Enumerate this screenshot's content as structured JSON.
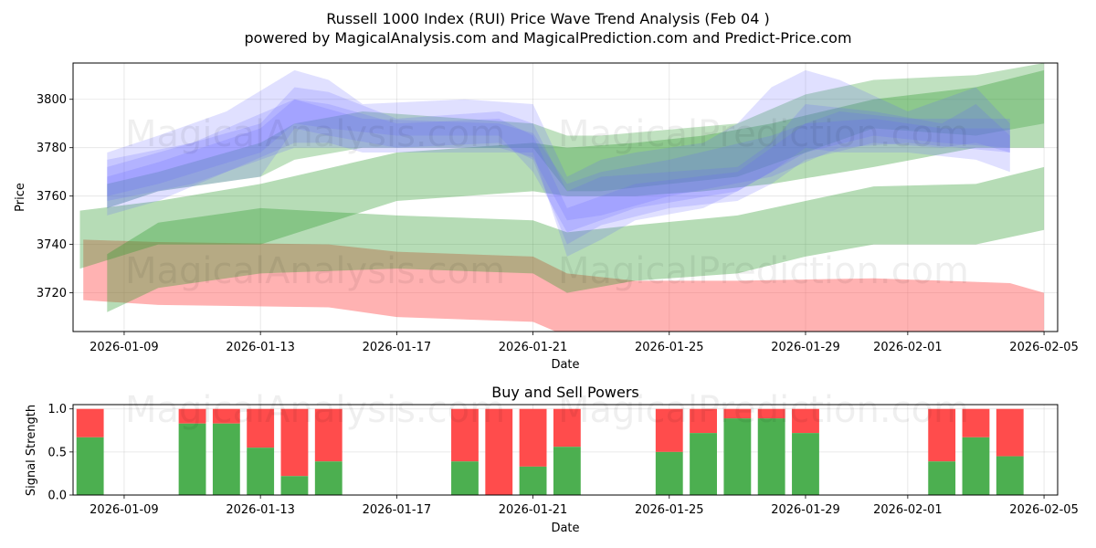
{
  "title_line1": "Russell 1000 Index (RUI) Price Wave Trend Analysis (Feb 04 )",
  "title_line2": "powered by MagicalAnalysis.com and MagicalPrediction.com and Predict-Price.com",
  "watermarks": [
    "MagicalAnalysis.com",
    "MagicalPrediction.com"
  ],
  "chart_data": [
    {
      "type": "area",
      "title": "",
      "xlabel": "Date",
      "ylabel": "Price",
      "x_ticks": [
        "2026-01-09",
        "2026-01-13",
        "2026-01-17",
        "2026-01-21",
        "2026-01-25",
        "2026-01-29",
        "2026-02-01",
        "2026-02-05"
      ],
      "y_ticks": [
        3720,
        3740,
        3760,
        3780,
        3800
      ],
      "xlim": [
        "2026-01-06.5",
        "2026-02-05.4"
      ],
      "ylim": [
        3704,
        3815
      ],
      "grid": true,
      "colors": {
        "blue": "#6666ff",
        "green": "#2e9a2e",
        "red": "#ff5555"
      },
      "bands": {
        "blue": [
          {
            "x": [
              7.5,
              9,
              12,
              13,
              14,
              16,
              19,
              20,
              21,
              22,
              24,
              26,
              27,
              28,
              30,
              32,
              33,
              34
            ],
            "lo": [
              3755,
              3762,
              3768,
              3788,
              3785,
              3780,
              3782,
              3775,
              3740,
              3748,
              3755,
              3758,
              3765,
              3775,
              3782,
              3780,
              3782,
              3778
            ],
            "hi": [
              3772,
              3778,
              3790,
              3805,
              3803,
              3792,
              3795,
              3790,
              3762,
              3768,
              3770,
              3772,
              3782,
              3798,
              3795,
              3790,
              3798,
              3785
            ]
          },
          {
            "x": [
              7.5,
              9,
              11,
              13,
              14,
              15,
              18,
              20,
              21,
              22,
              23,
              25,
              26,
              27,
              28,
              29,
              31,
              33,
              34
            ],
            "lo": [
              3752,
              3758,
              3770,
              3782,
              3782,
              3778,
              3778,
              3778,
              3735,
              3742,
              3750,
              3755,
              3762,
              3770,
              3780,
              3778,
              3778,
              3775,
              3770
            ],
            "hi": [
              3778,
              3785,
              3795,
              3812,
              3808,
              3798,
              3800,
              3798,
              3768,
              3775,
              3778,
              3782,
              3790,
              3805,
              3812,
              3808,
              3795,
              3805,
              3790
            ]
          },
          {
            "x": [
              7.5,
              9,
              12,
              13,
              14,
              16,
              19,
              20,
              21,
              23,
              26,
              28,
              30,
              32,
              34
            ],
            "lo": [
              3760,
              3765,
              3778,
              3790,
              3788,
              3785,
              3785,
              3770,
              3745,
              3755,
              3762,
              3778,
              3785,
              3782,
              3780
            ],
            "hi": [
              3768,
              3774,
              3788,
              3800,
              3798,
              3790,
              3792,
              3785,
              3755,
              3765,
              3770,
              3790,
              3792,
              3788,
              3788
            ]
          },
          {
            "x": [
              7.5,
              10,
              13,
              15,
              19,
              20,
              21,
              22,
              24,
              27,
              29,
              31,
              34
            ],
            "lo": [
              3758,
              3765,
              3780,
              3780,
              3780,
              3776,
              3750,
              3752,
              3760,
              3768,
              3780,
              3782,
              3778
            ],
            "hi": [
              3775,
              3782,
              3800,
              3792,
              3790,
              3786,
              3765,
              3770,
              3775,
              3785,
              3795,
              3792,
              3792
            ]
          }
        ],
        "green": [
          {
            "x": [
              7.5,
              9,
              12,
              13,
              15,
              20,
              21,
              22,
              26,
              28,
              30,
              33,
              35
            ],
            "lo": [
              3755,
              3762,
              3768,
              3775,
              3780,
              3780,
              3762,
              3762,
              3768,
              3778,
              3788,
              3785,
              3790
            ],
            "hi": [
              3765,
              3770,
              3782,
              3790,
              3795,
              3790,
              3785,
              3785,
              3790,
              3802,
              3808,
              3810,
              3815
            ]
          },
          {
            "x": [
              6.7,
              9,
              12,
              16,
              20,
              21,
              23,
              25,
              27,
              30,
              33,
              35
            ],
            "lo": [
              3730,
              3740,
              3740,
              3758,
              3762,
              3760,
              3760,
              3762,
              3765,
              3772,
              3780,
              3780
            ],
            "hi": [
              3754,
              3758,
              3765,
              3778,
              3782,
              3780,
              3782,
              3785,
              3790,
              3800,
              3805,
              3812
            ]
          },
          {
            "x": [
              7.5,
              9,
              12,
              16,
              20,
              21,
              23,
              26,
              28,
              30,
              33,
              35
            ],
            "lo": [
              3712,
              3722,
              3728,
              3730,
              3728,
              3720,
              3725,
              3728,
              3735,
              3740,
              3740,
              3746
            ]
          },
          {
            "x": [
              6.7,
              9,
              12,
              16,
              20,
              21,
              23,
              26,
              28,
              30,
              33,
              35
            ],
            "hi": [
              3736,
              3749,
              3755,
              3752,
              3750,
              3745,
              3748,
              3752,
              3758,
              3764,
              3765,
              3772
            ]
          }
        ],
        "red": [
          {
            "x": [
              6.8,
              9,
              14,
              16,
              20,
              21,
              23,
              26,
              30,
              34,
              35
            ],
            "lo": [
              3717,
              3715,
              3714,
              3710,
              3708,
              3702,
              3702,
              3702,
              3702,
              3702,
              3700
            ],
            "hi": [
              3742,
              3741,
              3740,
              3737,
              3735,
              3728,
              3725,
              3725,
              3726,
              3724,
              3720
            ]
          }
        ]
      }
    },
    {
      "type": "bar",
      "title": "Buy and Sell Powers",
      "xlabel": "Date",
      "ylabel": "Signal Strength",
      "x_ticks": [
        "2026-01-09",
        "2026-01-13",
        "2026-01-17",
        "2026-01-21",
        "2026-01-25",
        "2026-01-29",
        "2026-02-01",
        "2026-02-05"
      ],
      "y_ticks": [
        "0.0",
        "0.5",
        "1.0"
      ],
      "ylim": [
        0,
        1.05
      ],
      "grid": true,
      "colors": {
        "buy": "#4caf50",
        "sell": "#ff4c4c"
      },
      "bars": [
        {
          "date": "2026-01-08",
          "buy": 0.67
        },
        {
          "date": "2026-01-11",
          "buy": 0.83
        },
        {
          "date": "2026-01-12",
          "buy": 0.83
        },
        {
          "date": "2026-01-13",
          "buy": 0.55
        },
        {
          "date": "2026-01-14",
          "buy": 0.22
        },
        {
          "date": "2026-01-15",
          "buy": 0.39
        },
        {
          "date": "2026-01-19",
          "buy": 0.39
        },
        {
          "date": "2026-01-20",
          "buy": 0.0
        },
        {
          "date": "2026-01-21",
          "buy": 0.33
        },
        {
          "date": "2026-01-22",
          "buy": 0.56
        },
        {
          "date": "2026-01-25",
          "buy": 0.5
        },
        {
          "date": "2026-01-26",
          "buy": 0.72
        },
        {
          "date": "2026-01-27",
          "buy": 0.89
        },
        {
          "date": "2026-01-28",
          "buy": 0.89
        },
        {
          "date": "2026-01-29",
          "buy": 0.72
        },
        {
          "date": "2026-02-02",
          "buy": 0.39
        },
        {
          "date": "2026-02-03",
          "buy": 0.67
        },
        {
          "date": "2026-02-04",
          "buy": 0.45
        }
      ]
    }
  ]
}
